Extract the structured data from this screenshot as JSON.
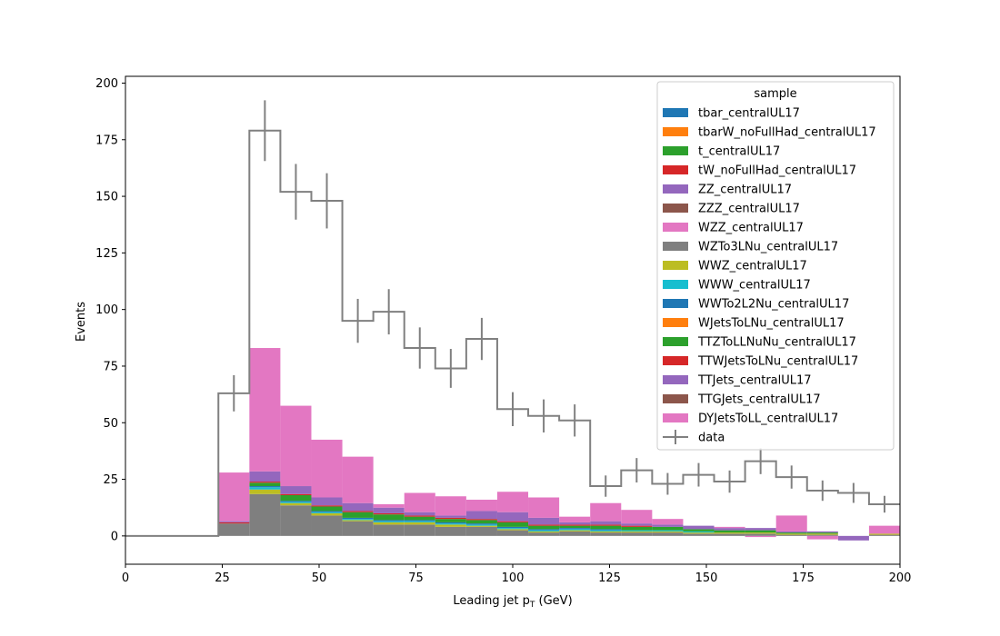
{
  "chart_data": {
    "type": "bar",
    "title": "",
    "xlabel": "Leading jet  p",
    "xlabel_sub": "T",
    "xlabel_unit": " (GeV)",
    "ylabel": "Events",
    "xlim": [
      0,
      200
    ],
    "ylim": [
      -12.5,
      203
    ],
    "xticks": [
      0,
      25,
      50,
      75,
      100,
      125,
      150,
      175,
      200
    ],
    "yticks": [
      0,
      25,
      50,
      75,
      100,
      125,
      150,
      175,
      200
    ],
    "grid": false,
    "legend": {
      "title": "sample",
      "placement": "top-right"
    },
    "bin_edges": [
      0,
      8,
      16,
      24,
      32,
      40,
      48,
      56,
      64,
      72,
      80,
      88,
      96,
      104,
      112,
      120,
      128,
      136,
      144,
      152,
      160,
      168,
      176,
      184,
      192,
      200
    ],
    "series": [
      {
        "name": "tbar_centralUL17",
        "color": "#1f77b4",
        "values": [
          0,
          0,
          0,
          0,
          0,
          0,
          0,
          0,
          0,
          0,
          0,
          0,
          0,
          0,
          0,
          0,
          0,
          0,
          0,
          0,
          0,
          0,
          0,
          0,
          0
        ]
      },
      {
        "name": "tbarW_noFullHad_centralUL17",
        "color": "#ff7f0e",
        "values": [
          0,
          0,
          0,
          0,
          0,
          0,
          0,
          0,
          0,
          0,
          0,
          0,
          0,
          0,
          0,
          0,
          0,
          0,
          0,
          0,
          0,
          0,
          0,
          0,
          0
        ]
      },
      {
        "name": "t_centralUL17",
        "color": "#2ca02c",
        "values": [
          0,
          0,
          0,
          0,
          0,
          0,
          0,
          0,
          0,
          0,
          0,
          0,
          0,
          0,
          0,
          0,
          0,
          0,
          0,
          0,
          0,
          0,
          0,
          0,
          0
        ]
      },
      {
        "name": "tW_noFullHad_centralUL17",
        "color": "#d62728",
        "values": [
          0,
          0,
          0,
          0,
          0,
          0,
          0,
          0,
          0,
          0,
          0,
          0,
          0,
          0,
          0,
          0,
          0,
          0,
          0,
          0,
          0,
          0,
          0,
          0,
          0
        ]
      },
      {
        "name": "ZZ_centralUL17",
        "color": "#9467bd",
        "values": [
          0,
          0,
          0,
          0,
          0,
          0,
          0,
          0,
          0,
          0,
          0,
          0,
          0,
          0,
          0,
          0,
          0,
          0,
          0,
          0,
          0,
          0,
          0,
          0,
          0
        ]
      },
      {
        "name": "ZZZ_centralUL17",
        "color": "#8c564b",
        "values": [
          0,
          0,
          0,
          0,
          0,
          0,
          0,
          0,
          0,
          0,
          0,
          0,
          0,
          0,
          0,
          0,
          0,
          0,
          0,
          0,
          0,
          0,
          0,
          0,
          0
        ]
      },
      {
        "name": "WZZ_centralUL17",
        "color": "#e377c2",
        "values": [
          0,
          0,
          0,
          0,
          0,
          0,
          0,
          0,
          0,
          0,
          0,
          0,
          0,
          0,
          0,
          0,
          0,
          0,
          0,
          0,
          0,
          0,
          0,
          0,
          0
        ]
      },
      {
        "name": "WZTo3LNu_centralUL17",
        "color": "#7f7f7f",
        "values": [
          0,
          0,
          0,
          5.5,
          18.5,
          13.5,
          9.0,
          6.5,
          5.0,
          5.0,
          4.0,
          4.0,
          2.5,
          1.5,
          2.0,
          1.5,
          1.5,
          1.5,
          1.0,
          1.0,
          1.0,
          0.5,
          0.5,
          0,
          0.5
        ]
      },
      {
        "name": "WWZ_centralUL17",
        "color": "#bcbd22",
        "values": [
          0,
          0,
          0,
          0,
          2.0,
          1.0,
          1.0,
          0.5,
          1.0,
          1.0,
          1.0,
          0.5,
          0.5,
          0.5,
          0.5,
          0.5,
          0.5,
          0.5,
          0.5,
          0.5,
          0.5,
          0.5,
          0.5,
          0,
          0.5
        ]
      },
      {
        "name": "WWW_centralUL17",
        "color": "#17becf",
        "values": [
          0,
          0,
          0,
          0,
          1.0,
          0.5,
          0.5,
          0.5,
          0.5,
          0.5,
          0.5,
          0.5,
          0.5,
          0.5,
          0.5,
          0.5,
          0.5,
          0.5,
          0.5,
          0,
          0,
          0,
          0,
          0,
          0
        ]
      },
      {
        "name": "WWTo2L2Nu_centralUL17",
        "color": "#1f77b4",
        "values": [
          0,
          0,
          0,
          0,
          0.5,
          0.5,
          0.5,
          0.5,
          0.5,
          0.5,
          0.5,
          0.5,
          0.5,
          0.5,
          0.5,
          0.5,
          0,
          0,
          0,
          0,
          0,
          0,
          0,
          0,
          0
        ]
      },
      {
        "name": "WJetsToLNu_centralUL17",
        "color": "#ff7f0e",
        "values": [
          0,
          0,
          0,
          0,
          0,
          0,
          0,
          0,
          0,
          0,
          0,
          0,
          0,
          0,
          0,
          0,
          0,
          0,
          0,
          0,
          0,
          0,
          0,
          0,
          0
        ]
      },
      {
        "name": "TTZToLLNuNu_centralUL17",
        "color": "#2ca02c",
        "values": [
          0,
          0,
          0,
          0,
          1.5,
          2.5,
          2.0,
          2.5,
          2.5,
          1.5,
          1.5,
          1.5,
          2.0,
          1.5,
          1.0,
          1.5,
          1.5,
          1.5,
          1.0,
          1.0,
          1.0,
          0.5,
          0.5,
          0,
          0
        ]
      },
      {
        "name": "TTWJetsToLNu_centralUL17",
        "color": "#d62728",
        "values": [
          0,
          0,
          0,
          0.5,
          0.5,
          0.5,
          0.5,
          0.5,
          0.5,
          0.5,
          0.5,
          0.5,
          0.5,
          0.5,
          0.5,
          0.5,
          0.5,
          0,
          0,
          0,
          0,
          0,
          0,
          0,
          0
        ]
      },
      {
        "name": "TTJets_centralUL17",
        "color": "#9467bd",
        "values": [
          0,
          0,
          0,
          0.5,
          4.5,
          3.5,
          3.5,
          3.5,
          2.5,
          1.5,
          1.0,
          3.5,
          4.0,
          3.0,
          1.0,
          1.5,
          1.0,
          1.0,
          1.5,
          1.0,
          1.0,
          0.5,
          0.5,
          -2.0,
          0
        ]
      },
      {
        "name": "TTGJets_centralUL17",
        "color": "#8c564b",
        "values": [
          0,
          0,
          0,
          0,
          0,
          0,
          0,
          0,
          0,
          0,
          0,
          0,
          0,
          0,
          0,
          0,
          0,
          0,
          0,
          0,
          0,
          0,
          0,
          0,
          0
        ]
      },
      {
        "name": "DYJetsToLL_centralUL17",
        "color": "#e377c2",
        "values": [
          0,
          0,
          0,
          21.5,
          54.5,
          35.5,
          25.5,
          20.5,
          1.5,
          8.5,
          8.5,
          5.0,
          9.0,
          9.0,
          2.5,
          8.0,
          6.0,
          2.5,
          0,
          0.5,
          -0.5,
          7.0,
          -1.5,
          0,
          3.5
        ]
      }
    ],
    "data": {
      "name": "data",
      "color": "#808080",
      "values": [
        0,
        0,
        0,
        63,
        179,
        152,
        148,
        95,
        99,
        83,
        74,
        87,
        56,
        53,
        51,
        22,
        29,
        23,
        27,
        24,
        33,
        26,
        20,
        19,
        14
      ],
      "errors": [
        0,
        0,
        0,
        8.0,
        13.4,
        12.3,
        12.2,
        9.7,
        10.0,
        9.1,
        8.6,
        9.3,
        7.5,
        7.3,
        7.1,
        4.7,
        5.4,
        4.8,
        5.2,
        4.9,
        5.7,
        5.1,
        4.5,
        4.4,
        3.7
      ]
    }
  }
}
